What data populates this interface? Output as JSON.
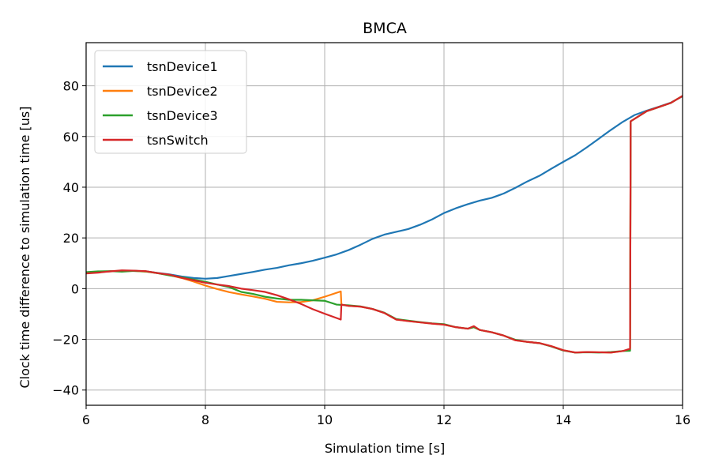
{
  "chart_data": {
    "type": "line",
    "title": "BMCA",
    "xlabel": "Simulation time [s]",
    "ylabel": "Clock time difference to simulation time [us]",
    "xlim": [
      6,
      16
    ],
    "ylim": [
      -46,
      97
    ],
    "xticks": [
      6,
      8,
      10,
      12,
      14,
      16
    ],
    "yticks": [
      -40,
      -20,
      0,
      20,
      40,
      60,
      80
    ],
    "xtick_labels": [
      "6",
      "8",
      "10",
      "12",
      "14",
      "16"
    ],
    "ytick_labels": [
      "−40",
      "−20",
      "0",
      "20",
      "40",
      "60",
      "80"
    ],
    "grid": true,
    "legend_position": "top-left",
    "series": [
      {
        "name": "tsnDevice1",
        "color": "#1f77b4",
        "x": [
          6.0,
          6.2,
          6.4,
          6.6,
          6.8,
          7.0,
          7.2,
          7.4,
          7.6,
          7.8,
          8.0,
          8.2,
          8.4,
          8.6,
          8.8,
          9.0,
          9.2,
          9.4,
          9.6,
          9.8,
          10.0,
          10.2,
          10.4,
          10.6,
          10.8,
          11.0,
          11.2,
          11.4,
          11.6,
          11.8,
          12.0,
          12.2,
          12.4,
          12.6,
          12.8,
          13.0,
          13.2,
          13.4,
          13.6,
          13.8,
          14.0,
          14.2,
          14.4,
          14.6,
          14.8,
          15.0,
          15.2,
          15.4,
          15.6,
          15.8,
          16.0
        ],
        "y": [
          6.3,
          6.6,
          6.8,
          7.0,
          7.0,
          6.8,
          6.2,
          5.6,
          4.8,
          4.2,
          3.9,
          4.2,
          5.0,
          5.8,
          6.6,
          7.5,
          8.2,
          9.2,
          10.0,
          11.0,
          12.2,
          13.5,
          15.2,
          17.3,
          19.6,
          21.3,
          22.4,
          23.5,
          25.2,
          27.3,
          29.8,
          31.7,
          33.3,
          34.7,
          35.8,
          37.5,
          39.8,
          42.3,
          44.5,
          47.3,
          50.0,
          52.6,
          55.8,
          59.2,
          62.6,
          65.8,
          68.5,
          70.2,
          71.7,
          73.3,
          75.9
        ]
      },
      {
        "name": "tsnDevice2",
        "color": "#ff7f0e",
        "x": [
          6.0,
          6.2,
          6.4,
          6.6,
          6.8,
          7.0,
          7.2,
          7.4,
          7.6,
          7.8,
          8.0,
          8.2,
          8.4,
          8.6,
          8.8,
          9.0,
          9.2,
          9.4,
          9.6,
          9.8,
          10.0,
          10.27,
          10.28,
          10.4,
          10.6,
          10.8,
          11.0,
          11.2,
          11.4,
          11.6,
          11.8,
          12.0,
          12.2,
          12.4,
          12.5,
          12.6,
          12.8,
          13.0,
          13.2,
          13.4,
          13.6,
          13.8,
          14.0,
          14.2,
          14.4,
          14.6,
          14.8,
          15.0,
          15.12,
          15.13,
          15.4,
          15.6,
          15.8,
          16.0
        ],
        "y": [
          6.3,
          6.5,
          6.8,
          7.0,
          7.0,
          6.7,
          6.1,
          5.3,
          4.2,
          2.8,
          1.2,
          -0.2,
          -1.4,
          -2.3,
          -3.1,
          -4.0,
          -5.2,
          -5.4,
          -5.3,
          -4.6,
          -3.2,
          -1.1,
          -6.3,
          -6.8,
          -7.1,
          -8.0,
          -9.6,
          -12.2,
          -12.8,
          -13.3,
          -13.8,
          -14.2,
          -15.2,
          -15.8,
          -15.2,
          -16.3,
          -17.2,
          -18.5,
          -20.4,
          -21.0,
          -21.5,
          -22.7,
          -24.3,
          -25.2,
          -25.0,
          -25.1,
          -25.2,
          -24.6,
          -24.2,
          66.0,
          70.0,
          71.6,
          73.2,
          76.0
        ]
      },
      {
        "name": "tsnDevice3",
        "color": "#2ca02c",
        "x": [
          6.0,
          6.2,
          6.4,
          6.6,
          6.8,
          7.0,
          7.2,
          7.4,
          7.6,
          7.8,
          8.0,
          8.2,
          8.4,
          8.6,
          8.8,
          9.0,
          9.2,
          9.4,
          9.6,
          9.8,
          10.0,
          10.2,
          10.4,
          10.6,
          10.8,
          11.0,
          11.2,
          11.4,
          11.6,
          11.8,
          12.0,
          12.2,
          12.4,
          12.5,
          12.6,
          12.8,
          13.0,
          13.2,
          13.4,
          13.6,
          13.8,
          14.0,
          14.2,
          14.4,
          14.6,
          14.8,
          15.0,
          15.12,
          15.13,
          15.4,
          15.6,
          15.8,
          16.0
        ],
        "y": [
          6.5,
          6.8,
          6.9,
          6.7,
          7.0,
          6.8,
          6.1,
          5.2,
          4.5,
          3.6,
          2.7,
          1.6,
          0.6,
          -1.3,
          -2.1,
          -3.2,
          -3.9,
          -4.4,
          -4.4,
          -4.6,
          -4.8,
          -6.3,
          -6.6,
          -7.0,
          -8.0,
          -9.5,
          -12.0,
          -12.6,
          -13.2,
          -13.7,
          -14.0,
          -15.2,
          -15.8,
          -15.2,
          -16.3,
          -17.2,
          -18.5,
          -20.2,
          -21.0,
          -21.5,
          -22.8,
          -24.4,
          -25.2,
          -25.1,
          -25.2,
          -25.0,
          -24.6,
          -24.5,
          66.0,
          70.0,
          71.6,
          73.2,
          76.0
        ]
      },
      {
        "name": "tsnSwitch",
        "color": "#d62728",
        "x": [
          6.0,
          6.2,
          6.4,
          6.6,
          6.8,
          7.0,
          7.2,
          7.4,
          7.6,
          7.8,
          8.0,
          8.2,
          8.4,
          8.6,
          8.8,
          9.0,
          9.2,
          9.4,
          9.6,
          9.8,
          10.0,
          10.27,
          10.28,
          10.4,
          10.6,
          10.8,
          11.0,
          11.2,
          11.4,
          11.6,
          11.8,
          12.0,
          12.2,
          12.4,
          12.5,
          12.6,
          12.8,
          13.0,
          13.2,
          13.4,
          13.6,
          13.8,
          14.0,
          14.2,
          14.4,
          14.6,
          14.8,
          15.0,
          15.12,
          15.13,
          15.4,
          15.6,
          15.8,
          16.0
        ],
        "y": [
          6.0,
          6.3,
          6.8,
          7.2,
          7.1,
          6.9,
          6.1,
          5.5,
          4.3,
          3.3,
          2.3,
          1.6,
          1.0,
          0.0,
          -0.6,
          -1.3,
          -2.6,
          -4.2,
          -6.0,
          -8.1,
          -9.9,
          -12.2,
          -6.3,
          -6.8,
          -7.1,
          -8.0,
          -9.6,
          -12.2,
          -12.8,
          -13.3,
          -13.8,
          -14.2,
          -15.2,
          -15.8,
          -14.8,
          -16.3,
          -17.2,
          -18.5,
          -20.4,
          -21.0,
          -21.5,
          -22.7,
          -24.3,
          -25.2,
          -25.0,
          -25.1,
          -25.2,
          -24.6,
          -23.7,
          66.0,
          70.0,
          71.6,
          73.2,
          76.0
        ]
      }
    ]
  }
}
